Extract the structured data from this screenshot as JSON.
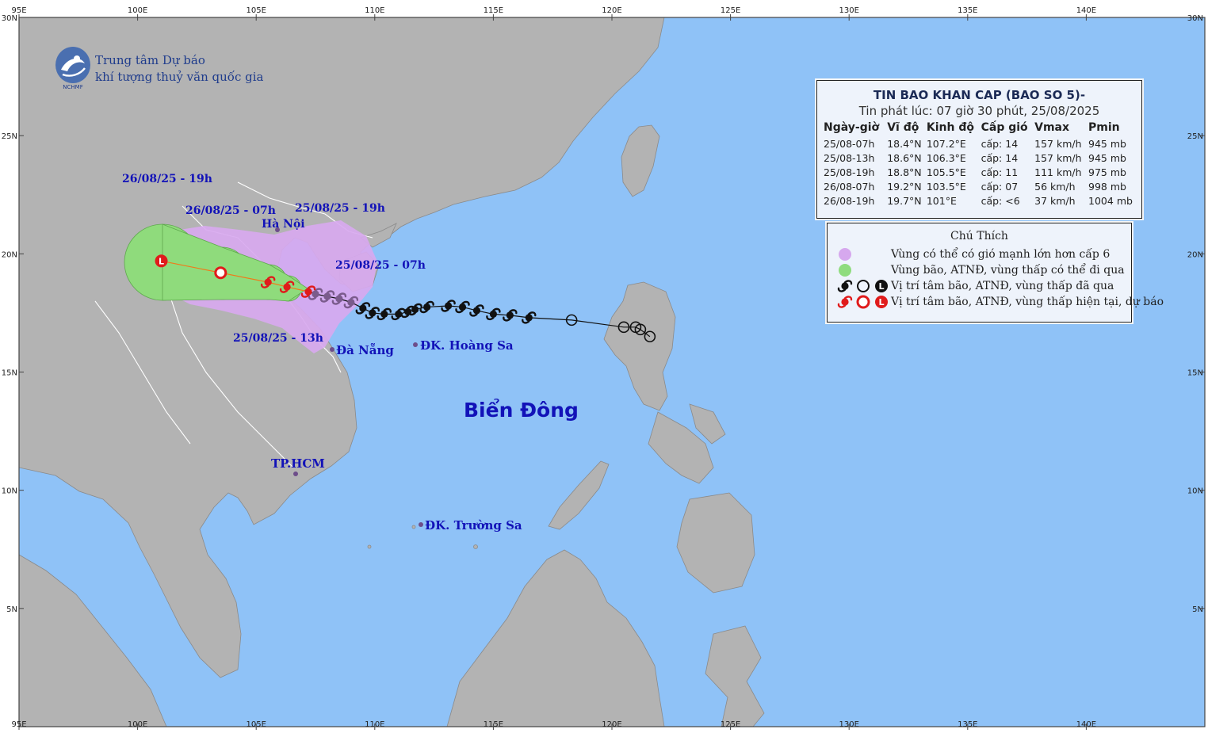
{
  "organization": {
    "line1": "Trung tâm Dự báo",
    "line2": "khí tượng thuỷ văn quốc gia",
    "logo_text": "NCHMF"
  },
  "info": {
    "title": "TIN BAO KHAN CAP (BAO SO 5)-",
    "subtitle": "Tin phát lúc: 07 giờ 30 phút, 25/08/2025",
    "columns": [
      "Ngày-giờ",
      "Vĩ độ",
      "Kinh độ",
      "Cấp gió",
      "Vmax",
      "Pmin"
    ],
    "rows": [
      [
        "25/08-07h",
        "18.4°N",
        "107.2°E",
        "cấp: 14",
        "157 km/h",
        "945 mb"
      ],
      [
        "25/08-13h",
        "18.6°N",
        "106.3°E",
        "cấp: 14",
        "157 km/h",
        "945 mb"
      ],
      [
        "25/08-19h",
        "18.8°N",
        "105.5°E",
        "cấp: 11",
        "111 km/h",
        "975 mb"
      ],
      [
        "26/08-07h",
        "19.2°N",
        "103.5°E",
        "cấp: 07",
        "56 km/h",
        "998 mb"
      ],
      [
        "26/08-19h",
        "19.7°N",
        "101°E",
        "cấp: <6",
        "37 km/h",
        "1004 mb"
      ]
    ]
  },
  "legend": {
    "title": "Chú Thích",
    "items": [
      {
        "text": "Vùng có thể có gió mạnh lớn hơn cấp 6",
        "icon": "purple-circle",
        "color": "#d6a8ee"
      },
      {
        "text": "Vùng bão, ATNĐ, vùng thấp có thể đi qua",
        "icon": "green-circle",
        "color": "#8fdc7e"
      },
      {
        "text": "Vị trí tâm bão, ATNĐ, vùng thấp đã qua",
        "icon": "black-storm-circle-L-icons",
        "color": "#111111"
      },
      {
        "text": "Vị trí tâm bão, ATNĐ, vùng thấp hiện tại, dự báo",
        "icon": "red-storm-circle-L-icons",
        "color": "#e01b1b"
      }
    ]
  },
  "places": {
    "sea": "Biển Đông",
    "hanoi": "Hà Nội",
    "danang": "Đà Nẵng",
    "hoangsa": "ĐK. Hoàng Sa",
    "hcm": "TP.HCM",
    "truongsa": "ĐK. Trường Sa"
  },
  "forecast_labels": {
    "t0": "25/08/25 - 07h",
    "t1": "25/08/25 - 13h",
    "t2": "25/08/25 - 19h",
    "t3": "26/08/25 - 07h",
    "t4": "26/08/25 - 19h"
  },
  "axes": {
    "lon_ticks": [
      "95E",
      "100E",
      "105E",
      "110E",
      "115E",
      "120E",
      "125E",
      "130E",
      "135E",
      "140E"
    ],
    "lat_ticks": [
      "30N",
      "25N",
      "20N",
      "15N",
      "10N",
      "5N"
    ],
    "lon_range": [
      95,
      145
    ],
    "lat_range": [
      0,
      30
    ]
  },
  "track": {
    "past_positions": [
      {
        "lon": 121.6,
        "lat": 16.5,
        "marker": "circle"
      },
      {
        "lon": 121.2,
        "lat": 16.8,
        "marker": "circle"
      },
      {
        "lon": 121.0,
        "lat": 16.9,
        "marker": "circle"
      },
      {
        "lon": 120.5,
        "lat": 16.9,
        "marker": "circle"
      },
      {
        "lon": 118.3,
        "lat": 17.2,
        "marker": "circle"
      },
      {
        "lon": 116.5,
        "lat": 17.3,
        "marker": "storm"
      },
      {
        "lon": 115.7,
        "lat": 17.4,
        "marker": "storm"
      },
      {
        "lon": 115.0,
        "lat": 17.45,
        "marker": "storm"
      },
      {
        "lon": 114.3,
        "lat": 17.6,
        "marker": "storm"
      },
      {
        "lon": 113.7,
        "lat": 17.75,
        "marker": "storm"
      },
      {
        "lon": 113.1,
        "lat": 17.8,
        "marker": "storm"
      },
      {
        "lon": 112.2,
        "lat": 17.75,
        "marker": "storm"
      },
      {
        "lon": 111.7,
        "lat": 17.65,
        "marker": "storm"
      },
      {
        "lon": 111.4,
        "lat": 17.55,
        "marker": "storm"
      },
      {
        "lon": 111.0,
        "lat": 17.45,
        "marker": "storm"
      },
      {
        "lon": 110.4,
        "lat": 17.45,
        "marker": "storm"
      },
      {
        "lon": 109.9,
        "lat": 17.5,
        "marker": "storm"
      },
      {
        "lon": 109.5,
        "lat": 17.7,
        "marker": "storm"
      },
      {
        "lon": 109.0,
        "lat": 17.95,
        "marker": "storm"
      },
      {
        "lon": 108.5,
        "lat": 18.1,
        "marker": "storm"
      },
      {
        "lon": 108.0,
        "lat": 18.2,
        "marker": "storm"
      },
      {
        "lon": 107.5,
        "lat": 18.3,
        "marker": "storm"
      }
    ],
    "forecast_positions": [
      {
        "lon": 107.2,
        "lat": 18.4,
        "marker": "storm"
      },
      {
        "lon": 106.3,
        "lat": 18.6,
        "marker": "storm"
      },
      {
        "lon": 105.5,
        "lat": 18.8,
        "marker": "storm"
      },
      {
        "lon": 103.5,
        "lat": 19.2,
        "marker": "circle"
      },
      {
        "lon": 101.0,
        "lat": 19.7,
        "marker": "L"
      }
    ]
  },
  "colors": {
    "sea": "#8fc2f7",
    "land": "#b3b3b3",
    "wind_zone": "#d8a9ef",
    "storm_zone": "#8fdb7c",
    "past_track": "#111111",
    "forecast_track": "#e01b1b",
    "track_transition": "#7a5b8c"
  }
}
